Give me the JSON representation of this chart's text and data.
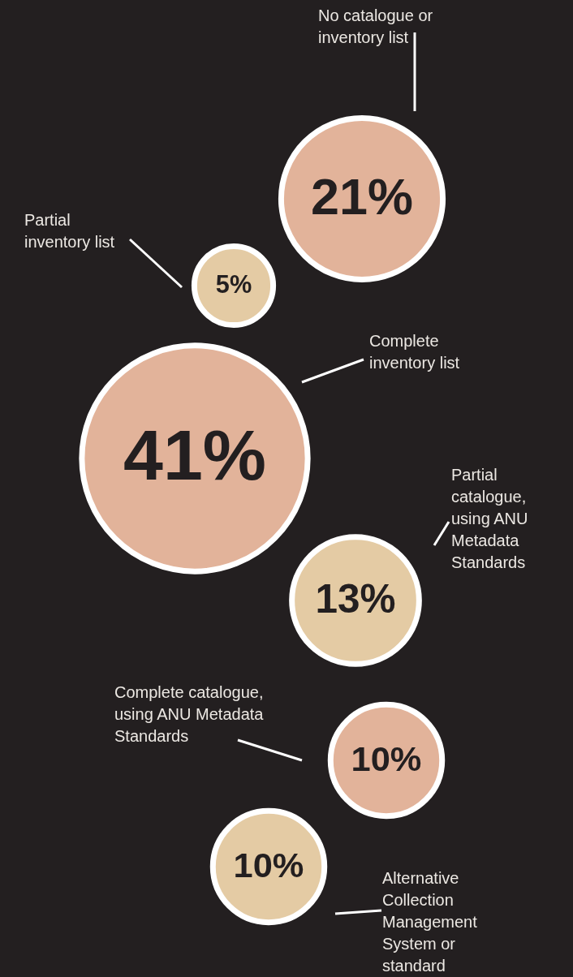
{
  "chart_data": {
    "type": "other",
    "categories": [
      "No catalogue or inventory list",
      "Partial inventory list",
      "Complete inventory list",
      "Partial catalogue, using ANU Metadata Standards",
      "Complete catalogue, using ANU Metadata Standards",
      "Alternative Collection Management System or standard"
    ],
    "values": [
      21,
      5,
      41,
      13,
      10,
      10
    ],
    "value_labels": [
      "21%",
      "5%",
      "41%",
      "13%",
      "10%",
      "10%"
    ],
    "colors": [
      "#e2b39a",
      "#e4cba4",
      "#e2b39a",
      "#e4cba4",
      "#e2b39a",
      "#e4cba4"
    ]
  }
}
